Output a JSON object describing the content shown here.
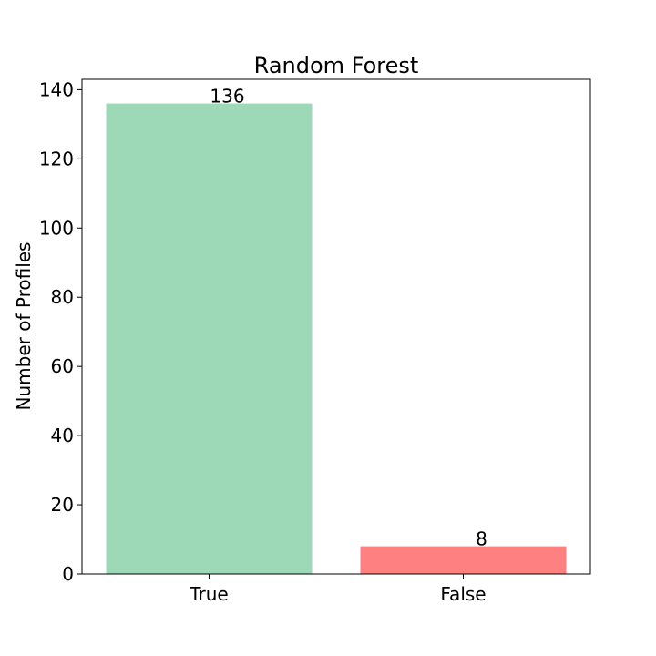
{
  "chart_data": {
    "type": "bar",
    "title": "Random Forest",
    "xlabel": "",
    "ylabel": "Number of Profiles",
    "categories": [
      "True",
      "False"
    ],
    "values": [
      136,
      8
    ],
    "data_labels": [
      "136",
      "8"
    ],
    "bar_colors": [
      "#9ed9b7",
      "#ff8080"
    ],
    "ylim": [
      0,
      143
    ],
    "yticks": [
      0,
      20,
      40,
      60,
      80,
      100,
      120,
      140
    ],
    "grid": false,
    "legend": "none"
  }
}
